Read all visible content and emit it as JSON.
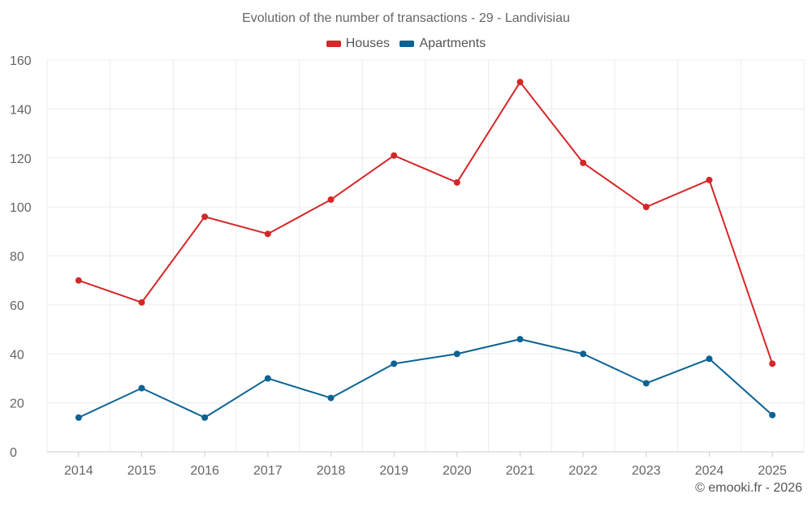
{
  "chart_data": {
    "type": "line",
    "title": "Evolution of the number of transactions - 29 - Landivisiau",
    "categories": [
      "2014",
      "2015",
      "2016",
      "2017",
      "2018",
      "2019",
      "2020",
      "2021",
      "2022",
      "2023",
      "2024",
      "2025"
    ],
    "series": [
      {
        "name": "Houses",
        "color": "#d62728",
        "values": [
          70,
          61,
          96,
          89,
          103,
          121,
          110,
          151,
          118,
          100,
          111,
          36
        ]
      },
      {
        "name": "Apartments",
        "color": "#0b6394",
        "values": [
          14,
          26,
          14,
          30,
          22,
          36,
          40,
          46,
          40,
          28,
          38,
          15
        ]
      }
    ],
    "ylim": [
      0,
      160
    ],
    "yticks": [
      0,
      20,
      40,
      60,
      80,
      100,
      120,
      140,
      160
    ],
    "xlabel": "",
    "ylabel": "",
    "grid": true,
    "legend_position": "top-center"
  },
  "credit": "© emooki.fr - 2026",
  "colors": {
    "grid": "#ececec",
    "axis": "#cccccc"
  }
}
